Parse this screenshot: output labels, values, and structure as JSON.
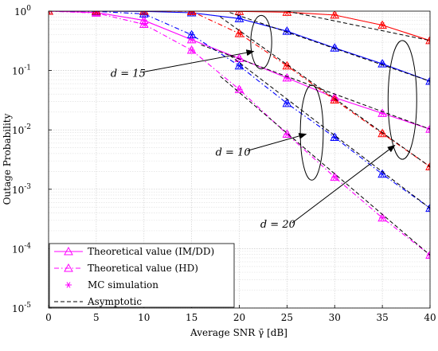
{
  "chart_data": {
    "type": "line",
    "xlabel": "Average SNR γ̄ [dB]",
    "ylabel": "Outage Probability",
    "xlim": [
      0,
      40
    ],
    "ylim": [
      1e-05,
      1
    ],
    "yscale": "log",
    "grid": true,
    "legend_placement": "bottom-left",
    "x_ticks": [
      {
        "value": 0,
        "label": "0"
      },
      {
        "value": 5,
        "label": "5"
      },
      {
        "value": 10,
        "label": "10"
      },
      {
        "value": 15,
        "label": "15"
      },
      {
        "value": 20,
        "label": "20"
      },
      {
        "value": 25,
        "label": "25"
      },
      {
        "value": 30,
        "label": "30"
      },
      {
        "value": 35,
        "label": "35"
      },
      {
        "value": 40,
        "label": "40"
      }
    ],
    "y_ticks": [
      {
        "value": 1,
        "base": "10",
        "exp": "0"
      },
      {
        "value": 0.1,
        "base": "10",
        "exp": "-1"
      },
      {
        "value": 0.01,
        "base": "10",
        "exp": "-2"
      },
      {
        "value": 0.001,
        "base": "10",
        "exp": "-3"
      },
      {
        "value": 0.0001,
        "base": "10",
        "exp": "-4"
      },
      {
        "value": 1e-05,
        "base": "10",
        "exp": "-5"
      }
    ],
    "legend": [
      {
        "label": "Theoretical value (IM/DD)",
        "style": "solid-triangle",
        "color": "#ff00ff"
      },
      {
        "label": "Theoretical value (HD)",
        "style": "dashdot-triangle",
        "color": "#ff00ff"
      },
      {
        "label": "MC simulation",
        "style": "star",
        "color": "#ff00ff"
      },
      {
        "label": "Asymptotic",
        "style": "dashed",
        "color": "#000000"
      }
    ],
    "annotations": [
      {
        "label": "d = 15",
        "text_at": [
          6.5,
          0.078
        ],
        "arrow_to": [
          21.5,
          0.21
        ],
        "ellipse_center": [
          22.3,
          0.3
        ],
        "ellipse_axes_dB_decades": [
          1.1,
          0.45
        ]
      },
      {
        "label": "d = 10",
        "text_at": [
          17.5,
          0.0037
        ],
        "arrow_to": [
          27,
          0.0085
        ],
        "ellipse_center": [
          27.6,
          0.009
        ],
        "ellipse_axes_dB_decades": [
          1.2,
          0.8
        ]
      },
      {
        "label": "d = 20",
        "text_at": [
          22.2,
          0.000225
        ],
        "arrow_to": [
          36.3,
          0.0055
        ],
        "ellipse_center": [
          37.1,
          0.032
        ],
        "ellipse_axes_dB_decades": [
          1.5,
          1.0
        ]
      }
    ],
    "x": [
      0,
      5,
      10,
      15,
      20,
      25,
      30,
      35,
      40
    ],
    "series": [
      {
        "color": "#ff00ff",
        "style": "solid",
        "group": "d=10",
        "values": [
          1.0,
          0.95,
          0.7,
          0.33,
          0.16,
          0.075,
          0.035,
          0.019,
          0.0103
        ]
      },
      {
        "color": "#ff00ff",
        "style": "dashdot",
        "group": "d=10",
        "values": [
          1.0,
          0.93,
          0.6,
          0.22,
          0.048,
          0.0085,
          0.0016,
          0.00033,
          7.8e-05
        ]
      },
      {
        "color": "#0000ff",
        "style": "solid",
        "group": "d=15",
        "values": [
          1.0,
          1.0,
          0.99,
          0.94,
          0.75,
          0.46,
          0.24,
          0.13,
          0.066
        ]
      },
      {
        "color": "#0000ff",
        "style": "dashdot",
        "group": "d=15",
        "values": [
          1.0,
          0.99,
          0.9,
          0.4,
          0.12,
          0.028,
          0.0075,
          0.0018,
          0.00048
        ]
      },
      {
        "color": "#ff0000",
        "style": "solid",
        "group": "d=20",
        "values": [
          1.0,
          1.0,
          1.0,
          1.0,
          0.99,
          0.96,
          0.86,
          0.58,
          0.32
        ]
      },
      {
        "color": "#ff0000",
        "style": "dashdot",
        "group": "d=20",
        "values": [
          1.0,
          1.0,
          1.0,
          0.99,
          0.42,
          0.12,
          0.032,
          0.0087,
          0.0024
        ]
      }
    ],
    "asymptotes": [
      {
        "group": "d=10 IM/DD",
        "x": [
          16,
          40
        ],
        "values": [
          0.27,
          0.0103
        ]
      },
      {
        "group": "d=10 HD",
        "x": [
          18,
          40
        ],
        "values": [
          0.08,
          7.8e-05
        ]
      },
      {
        "group": "d=15 IM/DD",
        "x": [
          19,
          40
        ],
        "values": [
          0.95,
          0.066
        ]
      },
      {
        "group": "d=15 HD",
        "x": [
          19,
          40
        ],
        "values": [
          0.18,
          0.00048
        ]
      },
      {
        "group": "d=20 IM/DD",
        "x": [
          25,
          40
        ],
        "values": [
          1.0,
          0.32
        ]
      },
      {
        "group": "d=20 HD",
        "x": [
          18,
          40
        ],
        "values": [
          0.8,
          0.0024
        ]
      }
    ]
  }
}
